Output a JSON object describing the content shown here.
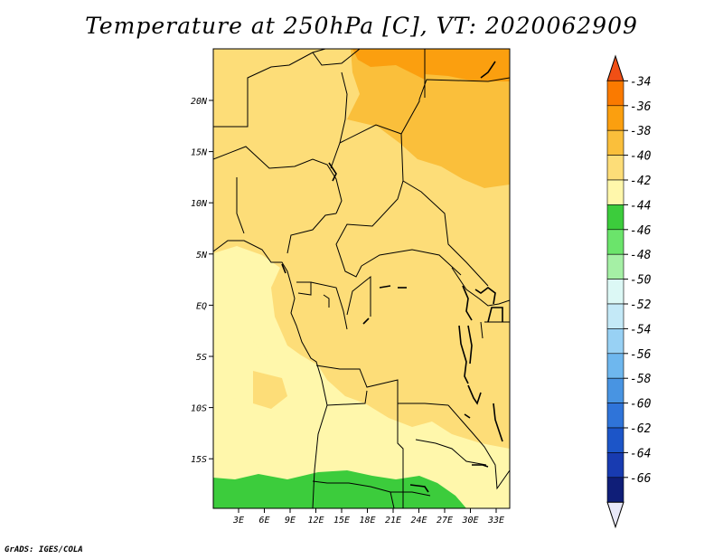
{
  "title": "Temperature at 250hPa [C], VT: 2020062909",
  "credit": "GrADS: IGES/COLA",
  "map": {
    "lat_labels": [
      "20N",
      "15N",
      "10N",
      "5N",
      "EQ",
      "5S",
      "10S",
      "15S"
    ],
    "lon_labels": [
      "3E",
      "6E",
      "9E",
      "12E",
      "15E",
      "18E",
      "21E",
      "24E",
      "27E",
      "30E",
      "33E"
    ]
  },
  "colorbar": {
    "labels": [
      "-34",
      "-36",
      "-38",
      "-40",
      "-42",
      "-44",
      "-46",
      "-48",
      "-50",
      "-52",
      "-54",
      "-56",
      "-58",
      "-60",
      "-62",
      "-64",
      "-66"
    ],
    "colors": [
      "#f04f15",
      "#fa7a00",
      "#fb9f0f",
      "#fabf3b",
      "#fddd78",
      "#fff7ab",
      "#3ccc3c",
      "#6be46b",
      "#a5f0a5",
      "#dcf8f5",
      "#c4e9f7",
      "#98d1f4",
      "#6eb7ee",
      "#4894e2",
      "#2f74d9",
      "#1c55c8",
      "#183bb1",
      "#0f1e78",
      "#e8e8f8"
    ]
  },
  "fill_colors": {
    "band40": "#fddd78",
    "band42": "#fff7ab",
    "band38": "#fabf3b",
    "band36": "#fb9f0f",
    "band44": "#3ccc3c"
  }
}
